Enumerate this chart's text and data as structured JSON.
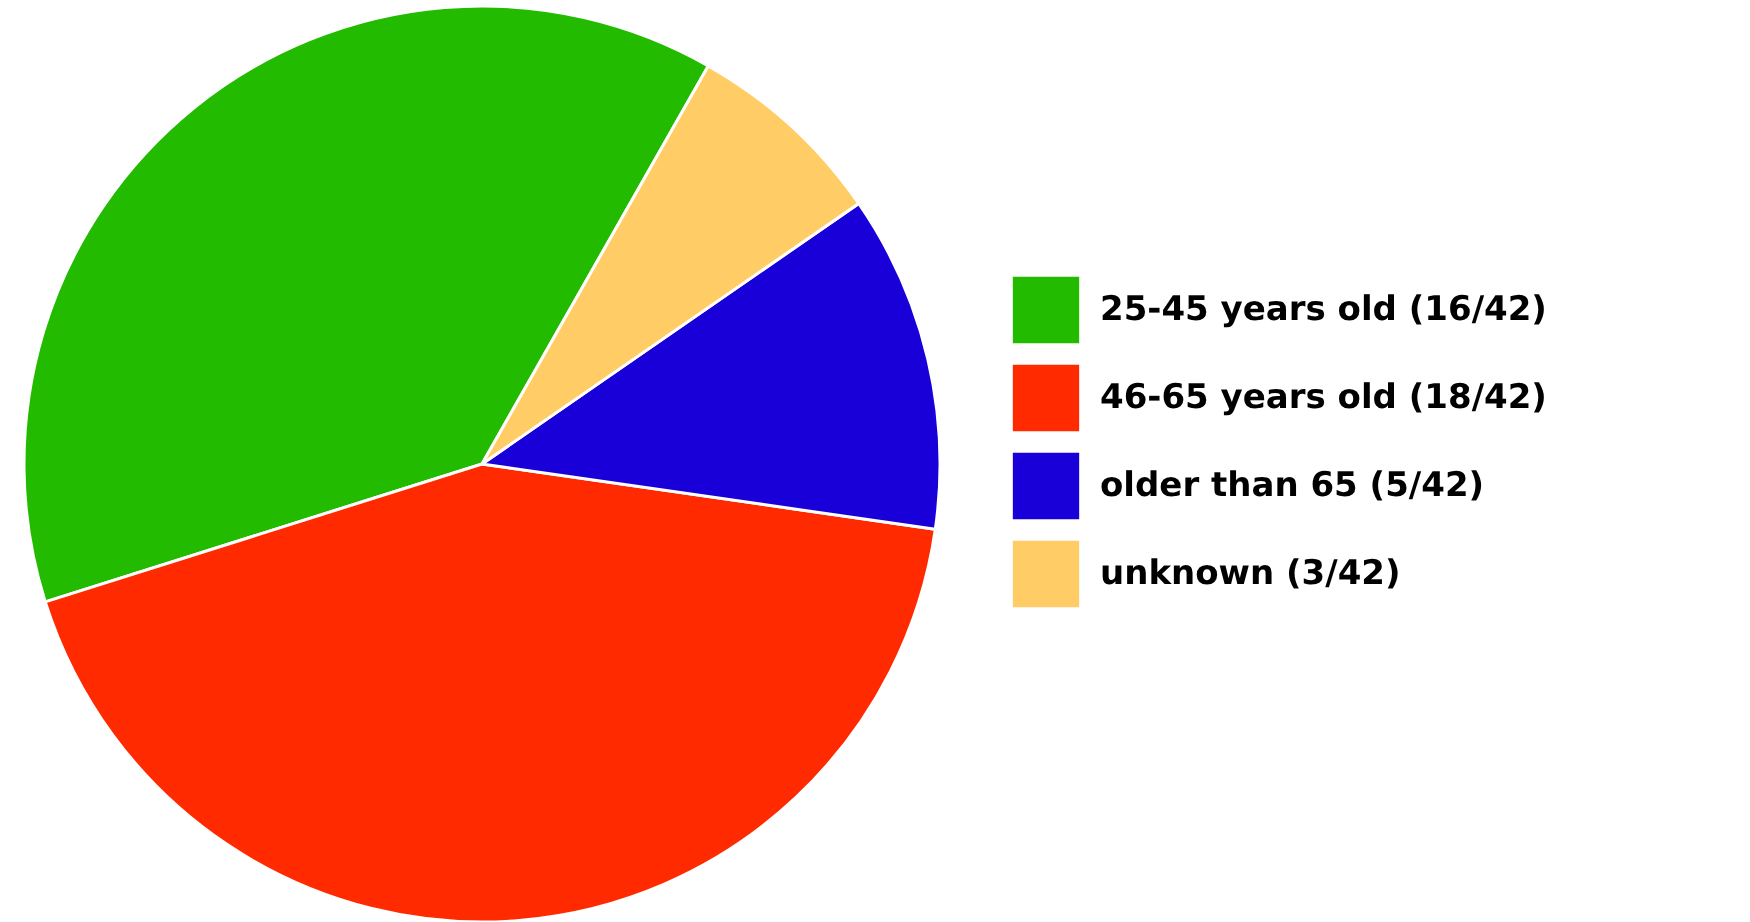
{
  "chart_data": {
    "type": "pie",
    "categories": [
      "25-45 years old (16/42)",
      "46-65 years old (18/42)",
      "older than 65 (5/42)",
      "unknown (3/42)"
    ],
    "values": [
      16,
      18,
      5,
      3
    ],
    "colors": [
      "#22bb00",
      "#ff2a00",
      "#1a00d8",
      "#ffcc66"
    ],
    "legend": "right"
  }
}
